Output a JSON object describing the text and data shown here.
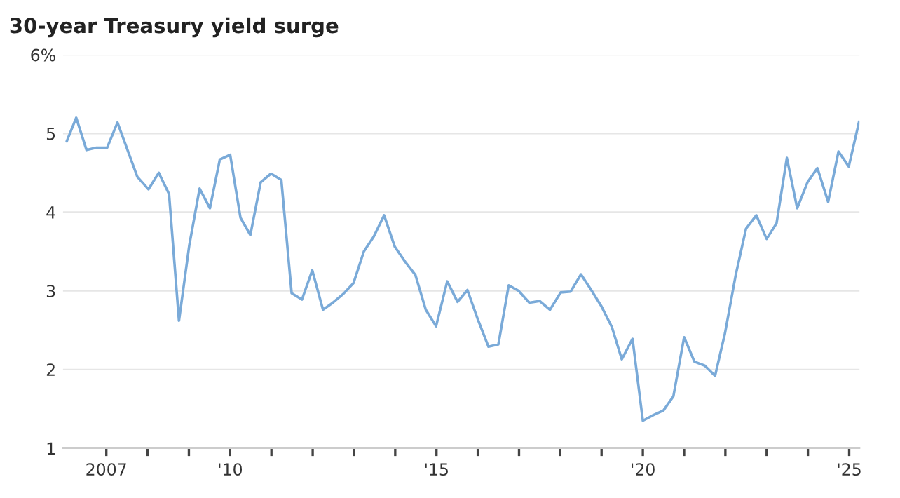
{
  "chart_data": {
    "type": "line",
    "title": "30-year Treasury yield surge",
    "x": [
      2006.04,
      2006.27,
      2006.52,
      2006.76,
      2007.02,
      2007.27,
      2007.75,
      2008.02,
      2008.27,
      2008.52,
      2008.76,
      2009.01,
      2009.26,
      2009.51,
      2009.75,
      2010.0,
      2010.25,
      2010.49,
      2010.74,
      2010.99,
      2011.24,
      2011.49,
      2011.74,
      2011.99,
      2012.25,
      2012.49,
      2012.74,
      2012.99,
      2013.24,
      2013.48,
      2013.73,
      2013.99,
      2014.24,
      2014.49,
      2014.74,
      2014.99,
      2015.26,
      2015.51,
      2015.75,
      2016.0,
      2016.26,
      2016.5,
      2016.75,
      2016.99,
      2017.25,
      2017.5,
      2017.75,
      2018.01,
      2018.25,
      2018.5,
      2018.75,
      2019.0,
      2019.25,
      2019.49,
      2019.75,
      2020.0,
      2020.25,
      2020.5,
      2020.74,
      2021.0,
      2021.25,
      2021.5,
      2021.75,
      2021.99,
      2022.25,
      2022.5,
      2022.75,
      2023.0,
      2023.24,
      2023.49,
      2023.74,
      2023.99,
      2024.23,
      2024.49,
      2024.74,
      2024.99,
      2025.24
    ],
    "series": [
      {
        "color": "#7aaad8",
        "values": [
          4.9,
          5.2,
          4.79,
          4.82,
          4.82,
          5.14,
          4.45,
          4.29,
          4.5,
          4.23,
          2.62,
          3.58,
          4.3,
          4.05,
          4.67,
          4.73,
          3.93,
          3.71,
          4.38,
          4.49,
          4.41,
          2.97,
          2.89,
          3.26,
          2.76,
          2.85,
          2.96,
          3.1,
          3.5,
          3.69,
          3.96,
          3.56,
          3.37,
          3.2,
          2.76,
          2.55,
          3.12,
          2.86,
          3.01,
          2.64,
          2.29,
          2.32,
          3.07,
          3.0,
          2.85,
          2.87,
          2.76,
          2.98,
          2.99,
          3.21,
          3.01,
          2.8,
          2.54,
          2.13,
          2.39,
          1.35,
          1.42,
          1.48,
          1.66,
          2.41,
          2.1,
          2.05,
          1.92,
          2.46,
          3.2,
          3.79,
          3.96,
          3.66,
          3.86,
          4.69,
          4.05,
          4.38,
          4.56,
          4.13,
          4.77,
          4.58,
          5.15
        ]
      }
    ],
    "xlim": [
      2005.95,
      2025.25
    ],
    "xticks": [
      {
        "value": 2007,
        "label": "2007"
      },
      {
        "value": 2008,
        "label": null
      },
      {
        "value": 2009,
        "label": null
      },
      {
        "value": 2010,
        "label": "'10"
      },
      {
        "value": 2011,
        "label": null
      },
      {
        "value": 2012,
        "label": null
      },
      {
        "value": 2013,
        "label": null
      },
      {
        "value": 2014,
        "label": null
      },
      {
        "value": 2015,
        "label": "'15"
      },
      {
        "value": 2016,
        "label": null
      },
      {
        "value": 2017,
        "label": null
      },
      {
        "value": 2018,
        "label": null
      },
      {
        "value": 2019,
        "label": null
      },
      {
        "value": 2020,
        "label": "'20"
      },
      {
        "value": 2021,
        "label": null
      },
      {
        "value": 2022,
        "label": null
      },
      {
        "value": 2023,
        "label": null
      },
      {
        "value": 2024,
        "label": null
      },
      {
        "value": 2025,
        "label": "'25"
      }
    ],
    "ylim": [
      1,
      6
    ],
    "yticks": [
      1,
      2,
      3,
      4,
      5,
      {
        "value": 6,
        "label": "6%"
      }
    ],
    "grid": "y",
    "marker": "none",
    "line_style": "solid"
  }
}
